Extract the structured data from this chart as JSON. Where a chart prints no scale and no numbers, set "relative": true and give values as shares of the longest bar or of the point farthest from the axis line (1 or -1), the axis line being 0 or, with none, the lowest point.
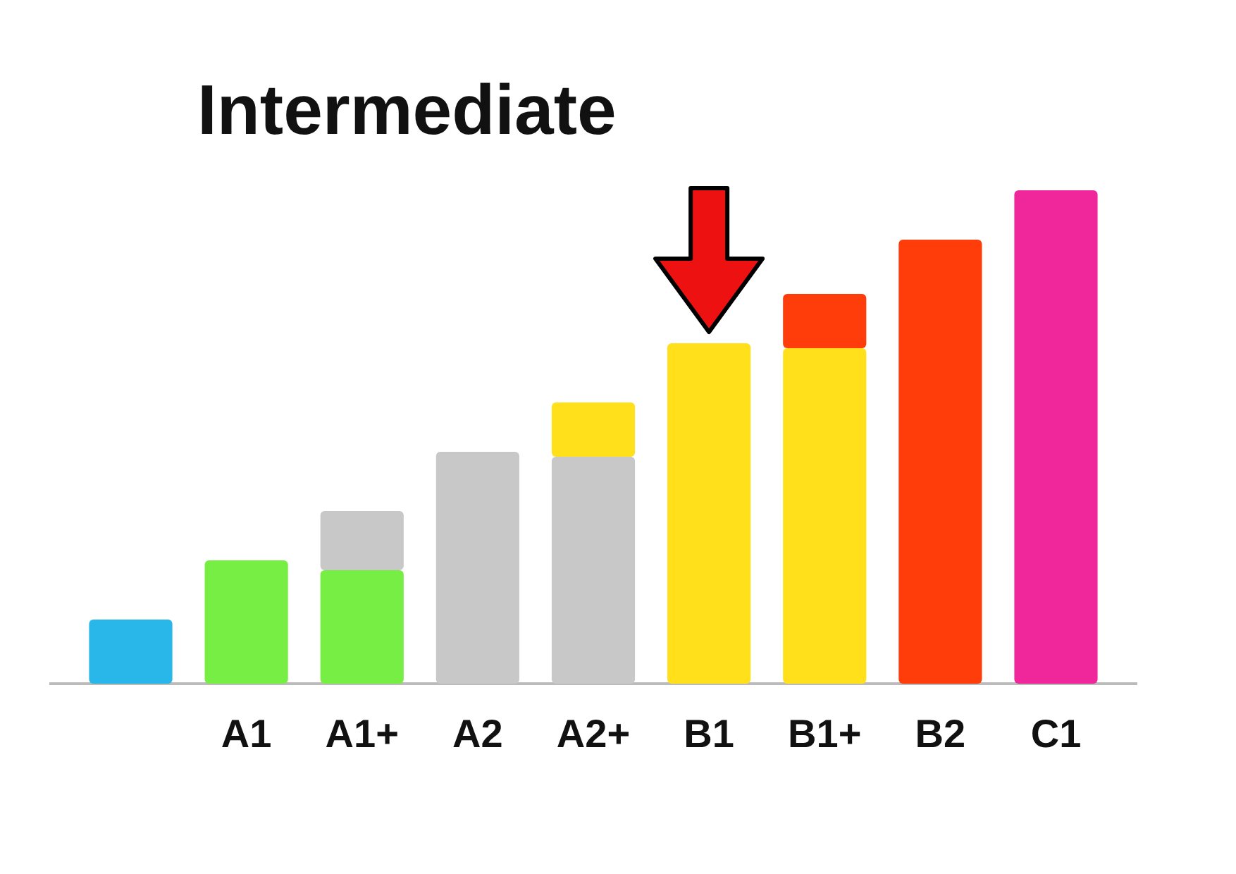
{
  "chart_data": {
    "type": "bar",
    "title": "Intermediate",
    "stacked": true,
    "categories": [
      null,
      "A1",
      "A1+",
      "A2",
      "A2+",
      "B1",
      "B1+",
      "B2",
      "C1"
    ],
    "series": [
      {
        "colors": [
          "#29b6e8",
          "#77ee44",
          "#77ee44",
          "#c8c8c8",
          "#c8c8c8",
          "#ffe01a",
          "#ffe01a",
          "#ff3d0a",
          "#f0279a"
        ],
        "values": [
          0.13,
          0.25,
          0.23,
          0.47,
          0.46,
          0.69,
          0.68,
          0.9,
          1
        ]
      },
      {
        "colors": [
          null,
          null,
          "#c8c8c8",
          null,
          "#ffe01a",
          null,
          "#ff3d0a",
          null,
          null
        ],
        "values": [
          null,
          null,
          0.12,
          null,
          0.11,
          null,
          0.11,
          null,
          null
        ]
      }
    ],
    "relative": true
  }
}
